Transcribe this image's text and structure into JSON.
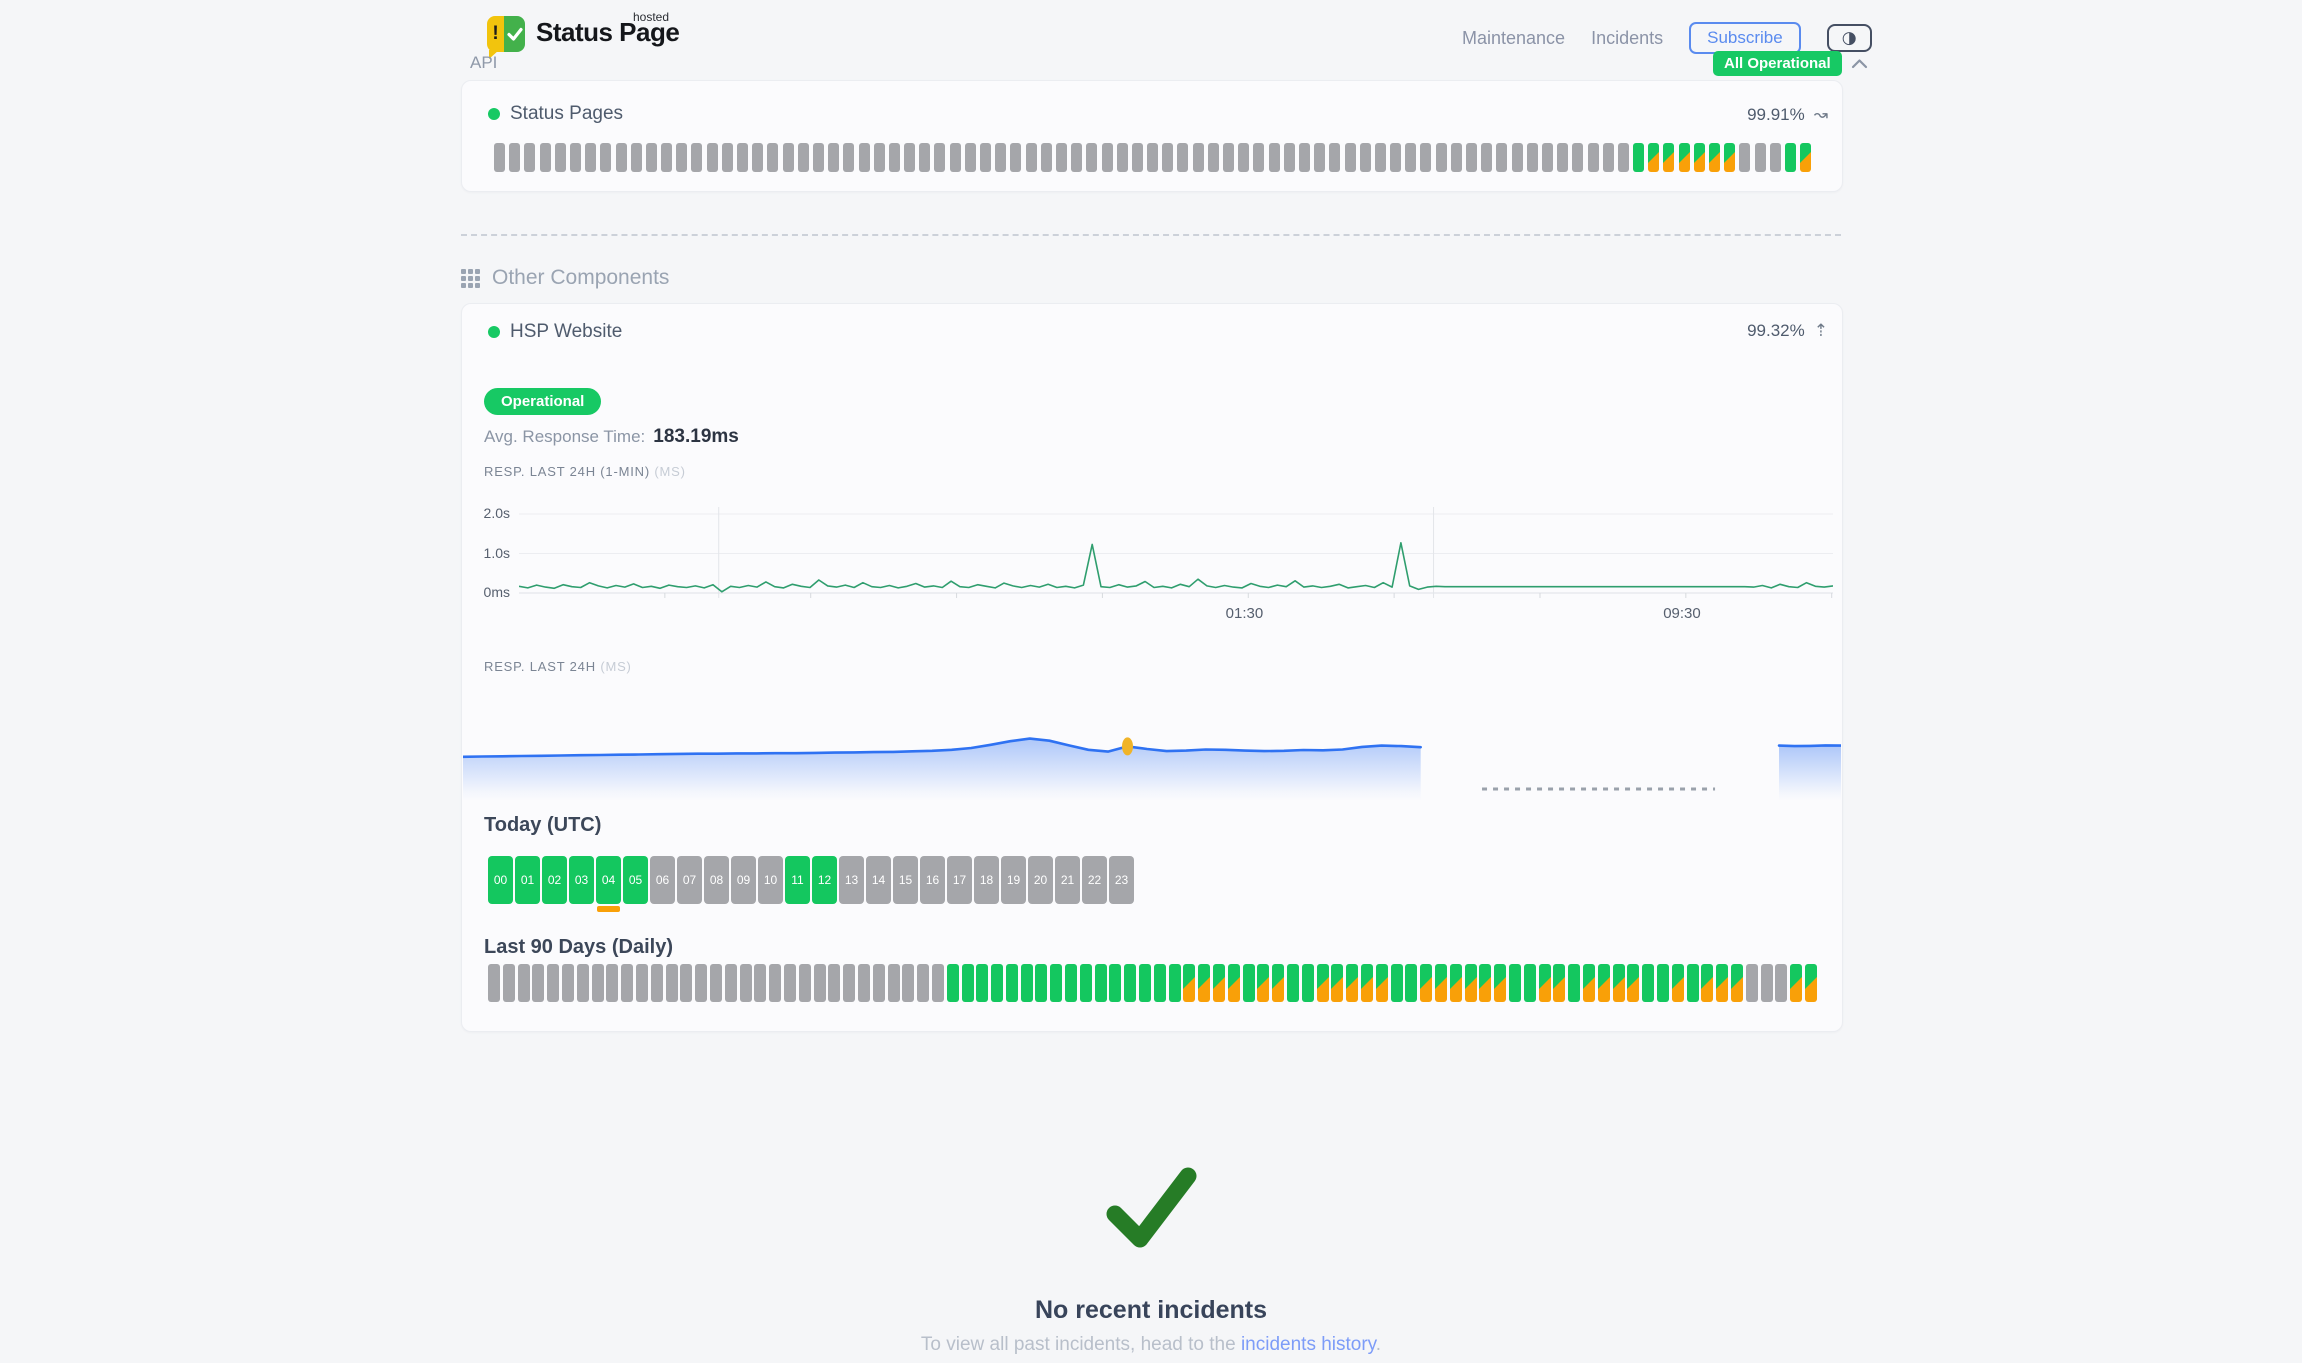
{
  "palette": {
    "green": "#17c964",
    "bar_green": "#14c75f",
    "orange": "#f9a008",
    "bar_gray": "#a5a6aa",
    "chart_green": "#2f9e6e",
    "chart_blue": "#2f72f2",
    "marker_yellow": "#f0b429",
    "link_blue": "#7d9cf8",
    "check_green": "#267c26"
  },
  "header": {
    "logo": {
      "brand": "Status Page",
      "superscript": "hosted",
      "exclamation": "!"
    },
    "nav": [
      {
        "label": "Maintenance"
      },
      {
        "label": "Incidents"
      }
    ],
    "subscribe_label": "Subscribe",
    "theme_toggle_glyph": "◑",
    "status_badge": "All Operational"
  },
  "api_section": {
    "title": "API",
    "component_name": "Status Pages",
    "uptime": "99.91%",
    "trend_icon": "wave-arrow",
    "trend_glyph": "↝",
    "bars": "eeeeeeeeeeeeeeeeeeeeeeeeeeeeeeeeeeeeeeeeeeeeeeeeeeeeeeeeeeeeeeeeeeeeeeeeeeegsssssseeegs"
  },
  "other_section": {
    "title": "Other Components",
    "component_name": "HSP Website",
    "uptime": "99.32%",
    "trend_icon": "dashed-up-arrow",
    "trend_glyph": "⇡",
    "status_label": "Operational",
    "avg_label": "Avg. Response Time:",
    "avg_value": "183.19ms",
    "resp_1min_label": "RESP. LAST 24H (1-MIN)",
    "resp_label": "RESP. LAST 24H",
    "unit_suffix": "(MS)"
  },
  "chart_data": [
    {
      "type": "line",
      "title": "RESP. LAST 24H (1-MIN) (MS)",
      "color": "#2f9e6e",
      "ylim": [
        0,
        2300
      ],
      "unit": "ms",
      "yticks": [
        {
          "label": "2.0s",
          "ms": 2000
        },
        {
          "label": "1.0s",
          "ms": 1000
        },
        {
          "label": "0ms",
          "ms": 0
        }
      ],
      "xticks": [
        {
          "label": "01:30",
          "pos": 0.553
        },
        {
          "label": "09:30",
          "pos": 0.886
        }
      ],
      "xtick_marks": [
        0.111,
        0.222,
        0.333,
        0.444,
        0.555,
        0.666,
        0.777,
        0.888,
        0.999
      ],
      "vgrid": [
        0.152,
        0.696
      ],
      "values": [
        170,
        130,
        200,
        150,
        120,
        210,
        160,
        140,
        260,
        180,
        130,
        190,
        150,
        230,
        140,
        170,
        120,
        200,
        160,
        140,
        180,
        130,
        210,
        30,
        170,
        140,
        190,
        150,
        280,
        160,
        130,
        220,
        170,
        140,
        330,
        180,
        150,
        200,
        140,
        260,
        160,
        140,
        190,
        130,
        170,
        240,
        150,
        180,
        140,
        300,
        160,
        140,
        210,
        170,
        130,
        250,
        180,
        140,
        190,
        150,
        220,
        140,
        170,
        130,
        200,
        1230,
        160,
        140,
        210,
        150,
        180,
        290,
        140,
        170,
        130,
        220,
        160,
        350,
        180,
        140,
        190,
        150,
        130,
        240,
        170,
        140,
        200,
        160,
        310,
        150,
        180,
        140,
        170,
        220,
        130,
        160,
        190,
        140,
        260,
        150,
        1270,
        180,
        90,
        150,
        170,
        160,
        160,
        160,
        160,
        160,
        160,
        160,
        160,
        160,
        160,
        160,
        160,
        160,
        160,
        160,
        160,
        160,
        160,
        160,
        160,
        160,
        160,
        160,
        160,
        160,
        160,
        160,
        160,
        160,
        160,
        160,
        160,
        160,
        160,
        160,
        150,
        190,
        130,
        220,
        160,
        140,
        260,
        170,
        150,
        180
      ]
    },
    {
      "type": "area",
      "title": "RESP. LAST 24H (MS)",
      "color": "#2f72f2",
      "unit": "ms",
      "marker": {
        "segment": 0,
        "index": 34,
        "color": "#f0b429"
      },
      "gap_dash": {
        "start": 0.7395,
        "end": 0.9086
      },
      "segments": [
        {
          "start": 0.0,
          "end": 0.695,
          "values": [
            170,
            171,
            172,
            173,
            174,
            175,
            176,
            177,
            178,
            179,
            180,
            181,
            182,
            182,
            183,
            183,
            184,
            184,
            185,
            186,
            187,
            188,
            189,
            191,
            193,
            197,
            204,
            216,
            230,
            240,
            232,
            214,
            197,
            190,
            210,
            200,
            192,
            194,
            198,
            197,
            194,
            192,
            193,
            196,
            195,
            198,
            208,
            213,
            211,
            207
          ]
        },
        {
          "start": 0.955,
          "end": 1.0,
          "values": [
            213,
            211,
            212,
            214,
            213
          ]
        }
      ]
    }
  ],
  "today": {
    "title": "Today (UTC)",
    "hours": [
      {
        "label": "00",
        "state": "g"
      },
      {
        "label": "01",
        "state": "g"
      },
      {
        "label": "02",
        "state": "g"
      },
      {
        "label": "03",
        "state": "g"
      },
      {
        "label": "04",
        "state": "g",
        "mark": true
      },
      {
        "label": "05",
        "state": "g"
      },
      {
        "label": "06",
        "state": "e"
      },
      {
        "label": "07",
        "state": "e"
      },
      {
        "label": "08",
        "state": "e"
      },
      {
        "label": "09",
        "state": "e"
      },
      {
        "label": "10",
        "state": "e"
      },
      {
        "label": "11",
        "state": "g"
      },
      {
        "label": "12",
        "state": "g"
      },
      {
        "label": "13",
        "state": "e"
      },
      {
        "label": "14",
        "state": "e"
      },
      {
        "label": "15",
        "state": "e"
      },
      {
        "label": "16",
        "state": "e"
      },
      {
        "label": "17",
        "state": "e"
      },
      {
        "label": "18",
        "state": "e"
      },
      {
        "label": "19",
        "state": "e"
      },
      {
        "label": "20",
        "state": "e"
      },
      {
        "label": "21",
        "state": "e"
      },
      {
        "label": "22",
        "state": "e"
      },
      {
        "label": "23",
        "state": "e"
      }
    ]
  },
  "last90": {
    "title": "Last 90 Days (Daily)",
    "days": "eeeeeeeeeeeeeeeeeeeeeeeeeeeeeeeggggggggggggggggssssgssggsssssggssssssggssgssssggsgssseeess"
  },
  "footer": {
    "title": "No recent incidents",
    "subtitle_prefix": "To view all past incidents, head to the ",
    "link_label": "incidents history",
    "subtitle_suffix": "."
  }
}
